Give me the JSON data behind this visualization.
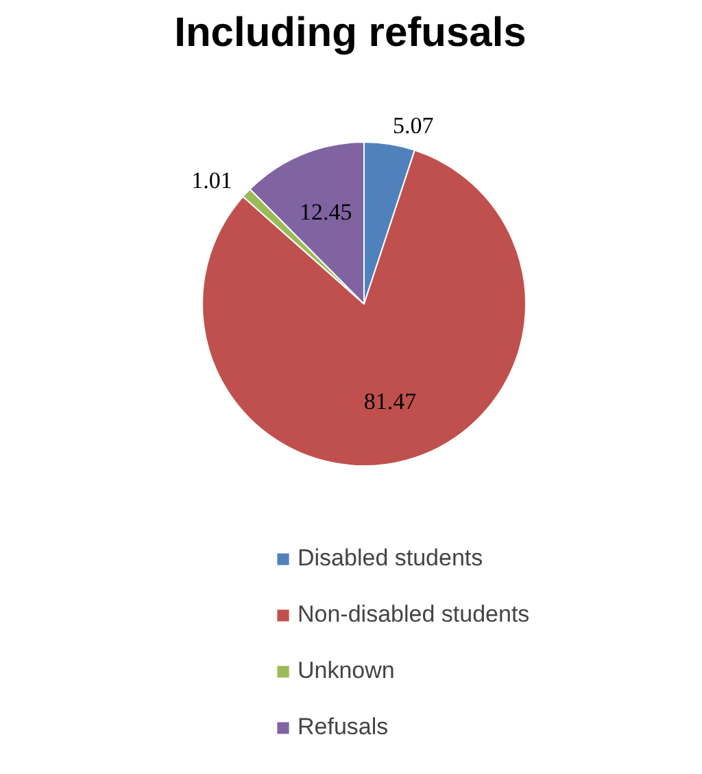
{
  "chart_data": {
    "type": "pie",
    "title": "Including refusals",
    "categories": [
      "Disabled students",
      "Non-disabled students",
      "Unknown",
      "Refusals"
    ],
    "values": [
      5.07,
      81.47,
      1.01,
      12.45
    ],
    "colors": [
      "#4f81bd",
      "#c0504d",
      "#9bbb59",
      "#8064a2"
    ],
    "data_labels": true,
    "legend": "bottom"
  }
}
